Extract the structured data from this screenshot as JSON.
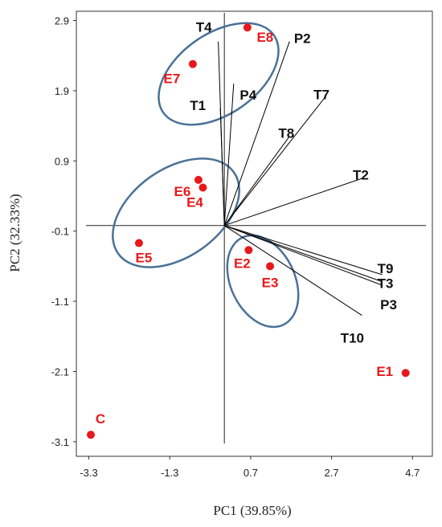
{
  "chart_data": {
    "type": "scatter",
    "subtype": "biplot",
    "xlabel": "PC1 (39.85%)",
    "ylabel": "PC2 (32.33%)",
    "xlim": [
      -3.3,
      4.7
    ],
    "ylim": [
      -3.1,
      2.9
    ],
    "xticks": [
      "-3.3",
      "-1.3",
      "0.7",
      "2.7",
      "4.7"
    ],
    "yticks": [
      "2.9",
      "1.9",
      "0.9",
      "-0.1",
      "-1.1",
      "-2.1",
      "-3.1"
    ],
    "point_color": "#e8181b",
    "vector_color": "#000000",
    "ellipse_color": "#4a7198",
    "samples": [
      {
        "label": "E1",
        "x": 4.53,
        "y": -2.12
      },
      {
        "label": "E2",
        "x": 0.65,
        "y": -0.37
      },
      {
        "label": "E3",
        "x": 1.18,
        "y": -0.6
      },
      {
        "label": "E4",
        "x": -0.48,
        "y": 0.52
      },
      {
        "label": "E5",
        "x": -2.06,
        "y": -0.27
      },
      {
        "label": "E6",
        "x": -0.59,
        "y": 0.63
      },
      {
        "label": "E7",
        "x": -0.73,
        "y": 2.28
      },
      {
        "label": "E8",
        "x": 0.62,
        "y": 2.8
      },
      {
        "label": "C",
        "x": -3.25,
        "y": -3.0
      }
    ],
    "loadings": [
      {
        "label": "T4",
        "x": -0.1,
        "y": 2.6
      },
      {
        "label": "T1",
        "x": -0.05,
        "y": 1.65
      },
      {
        "label": "P4",
        "x": 0.28,
        "y": 2.0
      },
      {
        "label": "P2",
        "x": 1.66,
        "y": 2.6
      },
      {
        "label": "T7",
        "x": 2.53,
        "y": 1.8
      },
      {
        "label": "T8",
        "x": 1.66,
        "y": 1.25
      },
      {
        "label": "T2",
        "x": 3.5,
        "y": 0.66
      },
      {
        "label": "T9",
        "x": 3.95,
        "y": -0.72
      },
      {
        "label": "T3",
        "x": 3.95,
        "y": -0.82
      },
      {
        "label": "P3",
        "x": 3.95,
        "y": -0.87
      },
      {
        "label": "T10",
        "x": 3.45,
        "y": -1.3
      }
    ],
    "groups": [
      {
        "members": [
          "E7",
          "E8",
          "T1",
          "T4",
          "P4",
          "P2"
        ]
      },
      {
        "members": [
          "E4",
          "E5",
          "E6"
        ]
      },
      {
        "members": [
          "E2",
          "E3"
        ]
      }
    ]
  }
}
